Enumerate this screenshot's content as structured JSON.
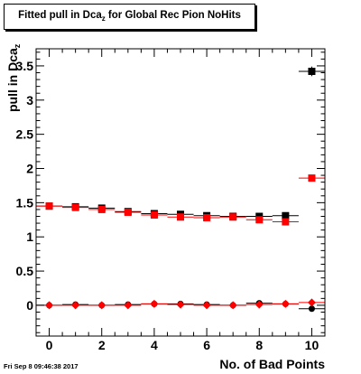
{
  "title": {
    "main": "Fitted pull in Dca",
    "subscript": "z",
    "rest": " for Global Rec Pion NoHits"
  },
  "timestamp": "Fri Sep  8 09:46:38 2017",
  "chart_data": {
    "type": "scatter",
    "xlabel": "No. of Bad Points",
    "ylabel_main": "pull in Dca",
    "ylabel_sub": "z",
    "xlim": [
      -0.5,
      10.5
    ],
    "ylim": [
      -0.45,
      3.75
    ],
    "x_ticks": [
      0,
      2,
      4,
      6,
      8,
      10
    ],
    "y_ticks": [
      0,
      0.5,
      1,
      1.5,
      2,
      2.5,
      3,
      3.5
    ],
    "x_tick_labels": [
      "0",
      "2",
      "4",
      "6",
      "8",
      "10"
    ],
    "y_tick_labels": [
      "0",
      "0.5",
      "1",
      "1.5",
      "2",
      "2.5",
      "3",
      "3.5"
    ],
    "grid": false,
    "series": [
      {
        "color": "#000000",
        "marker": "square",
        "x": [
          0,
          1,
          2,
          3,
          4,
          5,
          6,
          7,
          8,
          9,
          10
        ],
        "y": [
          1.45,
          1.44,
          1.42,
          1.37,
          1.34,
          1.33,
          1.31,
          1.3,
          1.3,
          1.31,
          3.42
        ],
        "yerr": [
          0.02,
          0.02,
          0.02,
          0.02,
          0.02,
          0.02,
          0.02,
          0.02,
          0.03,
          0.03,
          0.07
        ]
      },
      {
        "color": "#ff0000",
        "marker": "square",
        "x": [
          0,
          1,
          2,
          3,
          4,
          5,
          6,
          7,
          8,
          9,
          10
        ],
        "y": [
          1.45,
          1.43,
          1.4,
          1.36,
          1.32,
          1.29,
          1.28,
          1.29,
          1.25,
          1.22,
          1.86
        ],
        "yerr": [
          0.02,
          0.02,
          0.02,
          0.02,
          0.02,
          0.02,
          0.02,
          0.02,
          0.03,
          0.03,
          0.03
        ]
      },
      {
        "color": "#000000",
        "marker": "circle",
        "x": [
          0,
          1,
          2,
          3,
          4,
          5,
          6,
          7,
          8,
          9,
          10
        ],
        "y": [
          0.0,
          0.01,
          0.0,
          0.01,
          0.02,
          0.02,
          0.01,
          0.0,
          0.03,
          0.02,
          -0.05
        ],
        "yerr": [
          0.01,
          0.01,
          0.01,
          0.01,
          0.01,
          0.01,
          0.01,
          0.01,
          0.02,
          0.02,
          0.02
        ]
      },
      {
        "color": "#ff0000",
        "marker": "diamond",
        "x": [
          0,
          1,
          2,
          3,
          4,
          5,
          6,
          7,
          8,
          9,
          10
        ],
        "y": [
          0.0,
          0.0,
          0.0,
          0.0,
          0.02,
          0.01,
          0.0,
          0.0,
          0.01,
          0.02,
          0.04
        ],
        "yerr": [
          0.01,
          0.01,
          0.01,
          0.01,
          0.01,
          0.01,
          0.01,
          0.01,
          0.01,
          0.01,
          0.02
        ]
      }
    ]
  }
}
